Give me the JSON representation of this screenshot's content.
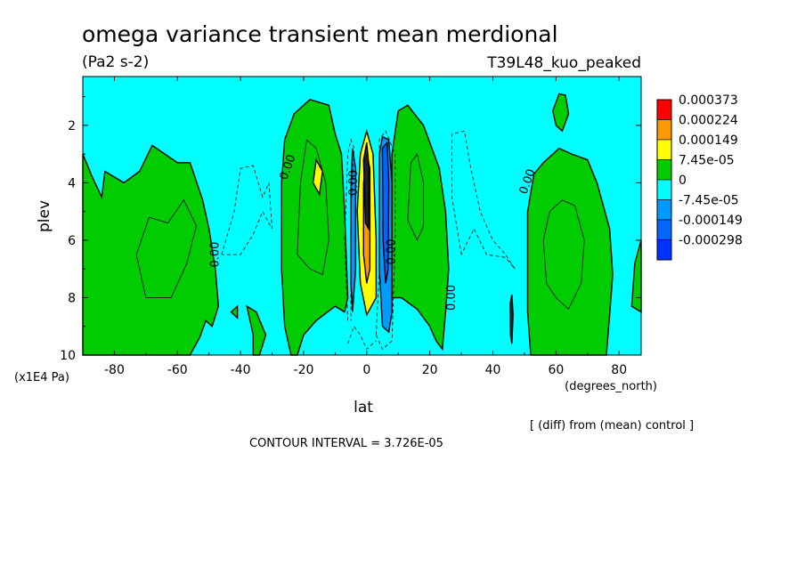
{
  "chart_data": {
    "type": "heatmap",
    "title": "omega variance transient mean merdional",
    "units": "(Pa2 s-2)",
    "experiment": "T39L48_kuo_peaked",
    "xlabel": "lat",
    "x_units": "(degrees_north)",
    "ylabel": "plev",
    "y_units": "(x1E4 Pa)",
    "xlim": [
      -90,
      87
    ],
    "ylim": [
      0.3,
      10
    ],
    "y_inverted": true,
    "xticks": [
      -80,
      -60,
      -40,
      -20,
      0,
      20,
      40,
      60,
      80
    ],
    "xtick_labels": [
      "-80",
      "-60",
      "-40",
      "-20",
      "0",
      "20",
      "40",
      "60",
      "80"
    ],
    "yticks": [
      2,
      4,
      6,
      8,
      10
    ],
    "ytick_labels": [
      "2",
      "4",
      "6",
      "8",
      "10"
    ],
    "contour_interval_text": "CONTOUR INTERVAL = 3.726E-05",
    "diff_note": "[ (diff) from (mean) control ]",
    "contour_labels": [
      "0.00",
      "0.00",
      "0.00",
      "0.00",
      "0.00",
      "0.00"
    ],
    "legend": [
      {
        "label": "0.000373",
        "color": "#ff0000"
      },
      {
        "label": "0.000224",
        "color": "#ff9900"
      },
      {
        "label": "0.000149",
        "color": "#ffff00"
      },
      {
        "label": "7.45e-05",
        "color": "#00cc00"
      },
      {
        "label": "0",
        "color": "#00ffff"
      },
      {
        "label": "-7.45e-05",
        "color": "#0099ff"
      },
      {
        "label": "-0.000149",
        "color": "#0066ff"
      },
      {
        "label": "-0.000298",
        "color": "#0033ff"
      }
    ],
    "regions": [
      {
        "level": "positive",
        "color": "#00cc00",
        "lat_range": [
          -90,
          -48
        ],
        "plev_range": [
          3.0,
          10
        ]
      },
      {
        "level": "positive",
        "color": "#00cc00",
        "lat_range": [
          -27,
          -7
        ],
        "plev_range": [
          1.1,
          10
        ]
      },
      {
        "level": "positive",
        "color": "#00cc00",
        "lat_range": [
          8,
          26
        ],
        "plev_range": [
          1.3,
          10
        ]
      },
      {
        "level": "positive",
        "color": "#00cc00",
        "lat_range": [
          51,
          78
        ],
        "plev_range": [
          3.0,
          10
        ]
      },
      {
        "level": "strong positive",
        "color": "#ffff00",
        "lat_range": [
          -3,
          3
        ],
        "plev_range": [
          3.0,
          8.5
        ]
      },
      {
        "level": "negative",
        "color": "#0066ff",
        "lat_range": [
          5,
          8
        ],
        "plev_range": [
          2.5,
          9.2
        ]
      }
    ]
  }
}
